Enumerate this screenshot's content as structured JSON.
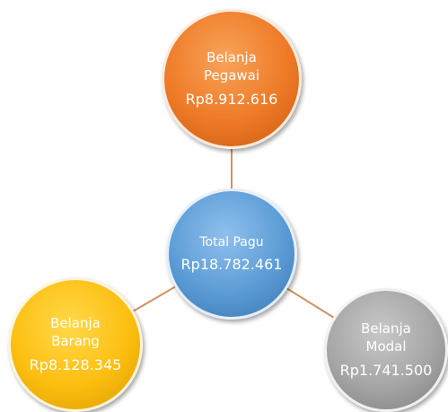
{
  "nodes": [
    {
      "label": "Total Pagu",
      "value": "Rp18.782.461"
    },
    {
      "label": "Belanja Pegawai",
      "value": "Rp8.912.616"
    },
    {
      "label": "Belanja Barang",
      "value": "Rp8.128.345"
    },
    {
      "label": "Belanja Modal",
      "value": "Rp1.741.500"
    }
  ]
}
